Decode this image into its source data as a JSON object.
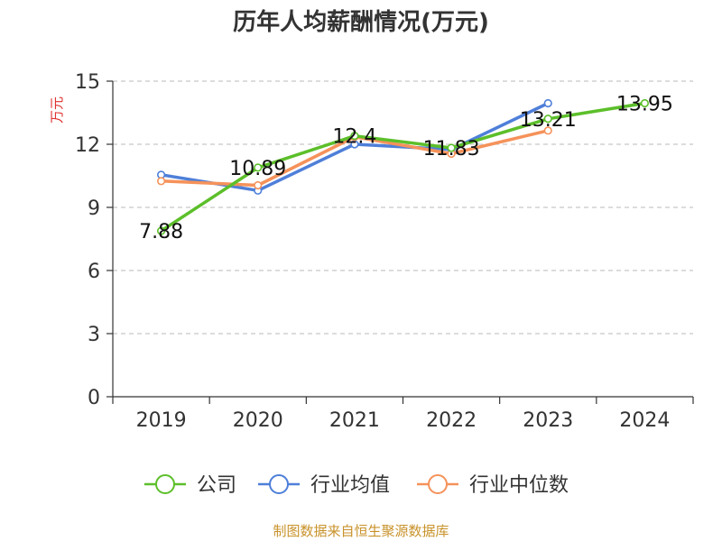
{
  "chart_data": {
    "type": "line",
    "title": "历年人均薪酬情况(万元)",
    "ylabel": "万元",
    "xlabel": "",
    "categories": [
      "2019",
      "2020",
      "2021",
      "2022",
      "2023",
      "2024"
    ],
    "ylim": [
      0,
      15
    ],
    "yticks": [
      "0",
      "3",
      "6",
      "9",
      "12",
      "15"
    ],
    "grid": true,
    "legend_position": "bottom",
    "series": [
      {
        "name": "公司",
        "color": "#5cbf2a",
        "values": [
          7.88,
          10.89,
          12.4,
          11.83,
          13.21,
          13.95
        ],
        "labels": [
          "7.88",
          "10.89",
          "12.4",
          "11.83",
          "13.21",
          "13.95"
        ]
      },
      {
        "name": "行业均值",
        "color": "#4e7fd9",
        "values": [
          10.55,
          9.8,
          12.0,
          11.75,
          13.95,
          null
        ]
      },
      {
        "name": "行业中位数",
        "color": "#f5925a",
        "values": [
          10.25,
          10.05,
          12.35,
          11.55,
          12.65,
          null
        ]
      }
    ]
  },
  "source": "制图数据来自恒生聚源数据库"
}
